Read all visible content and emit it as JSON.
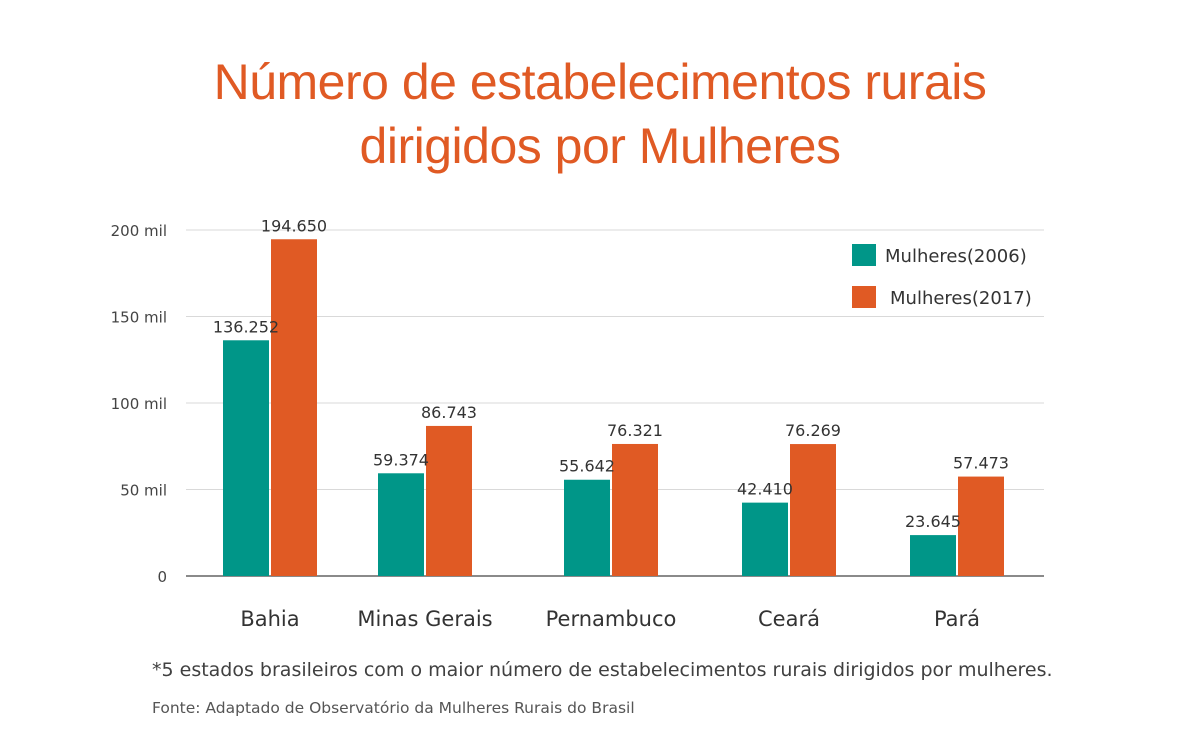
{
  "chart_data": {
    "type": "bar",
    "title_lines": [
      "Número de estabelecimentos rurais",
      "dirigidos por Mulheres"
    ],
    "categories": [
      "Bahia",
      "Minas Gerais",
      "Pernambuco",
      "Ceará",
      "Pará"
    ],
    "series": [
      {
        "name": "Mulheres(2006)",
        "color": "#009688",
        "values": [
          136252,
          59374,
          55642,
          42410,
          23645
        ],
        "labels": [
          "136.252",
          "59.374",
          "55.642",
          "42.410",
          "23.645"
        ]
      },
      {
        "name": "Mulheres(2017)",
        "color": "#e05a24",
        "values": [
          194650,
          86743,
          76321,
          76269,
          57473
        ],
        "labels": [
          "194.650",
          "86.743",
          "76.321",
          "76.269",
          "57.473"
        ]
      }
    ],
    "yticks": [
      {
        "value": 0,
        "label": "0"
      },
      {
        "value": 50000,
        "label": "50 mil"
      },
      {
        "value": 100000,
        "label": "100 mil"
      },
      {
        "value": 150000,
        "label": "150 mil"
      },
      {
        "value": 200000,
        "label": "200 mil"
      }
    ],
    "ylim": [
      0,
      200000
    ],
    "grid": true,
    "legend_position": "top-right"
  },
  "footnote": "*5 estados brasileiros com o maior número de estabelecimentos rurais dirigidos por mulheres.",
  "source": "Fonte: Adaptado de Observatório da Mulheres Rurais do Brasil"
}
